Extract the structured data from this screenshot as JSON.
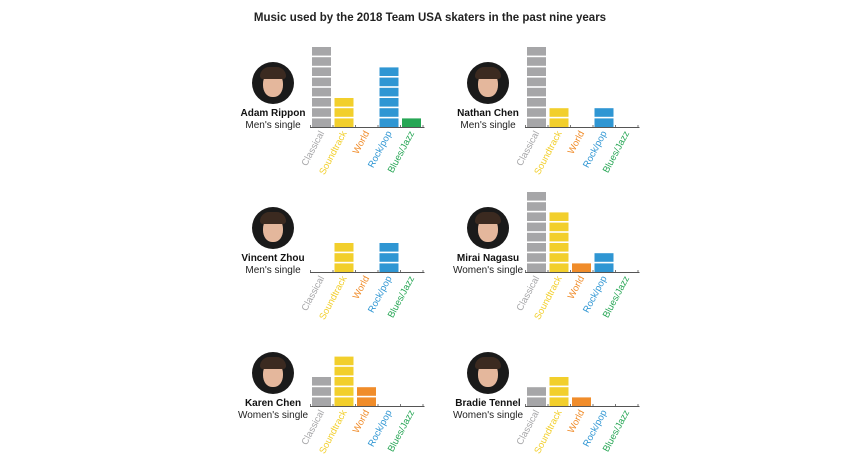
{
  "title": "Music used by the 2018 Team USA skaters in the past nine years",
  "categories": [
    "Classical",
    "Soundtrack",
    "World",
    "Rock/pop",
    "Blues/Jazz"
  ],
  "colors": {
    "Classical": "#a6a6a8",
    "Soundtrack": "#f2cf2c",
    "World": "#f08c2a",
    "Rock/pop": "#2f96d3",
    "Blues/Jazz": "#27a655"
  },
  "skaters": [
    {
      "name": "Adam Rippon",
      "event": "Men's single"
    },
    {
      "name": "Nathan Chen",
      "event": "Men's single"
    },
    {
      "name": "Vincent Zhou",
      "event": "Men's single"
    },
    {
      "name": "Mirai Nagasu",
      "event": "Women's single"
    },
    {
      "name": "Karen Chen",
      "event": "Women's single"
    },
    {
      "name": "Bradie Tennel",
      "event": "Women's single"
    }
  ],
  "chart_data": [
    {
      "type": "bar",
      "title": "Adam Rippon",
      "categories": [
        "Classical",
        "Soundtrack",
        "World",
        "Rock/pop",
        "Blues/Jazz"
      ],
      "values": [
        8,
        3,
        0,
        6,
        1
      ]
    },
    {
      "type": "bar",
      "title": "Nathan Chen",
      "categories": [
        "Classical",
        "Soundtrack",
        "World",
        "Rock/pop",
        "Blues/Jazz"
      ],
      "values": [
        8,
        2,
        0,
        2,
        0
      ]
    },
    {
      "type": "bar",
      "title": "Vincent Zhou",
      "categories": [
        "Classical",
        "Soundtrack",
        "World",
        "Rock/pop",
        "Blues/Jazz"
      ],
      "values": [
        0,
        3,
        0,
        3,
        0
      ]
    },
    {
      "type": "bar",
      "title": "Mirai Nagasu",
      "categories": [
        "Classical",
        "Soundtrack",
        "World",
        "Rock/pop",
        "Blues/Jazz"
      ],
      "values": [
        8,
        6,
        1,
        2,
        0
      ]
    },
    {
      "type": "bar",
      "title": "Karen Chen",
      "categories": [
        "Classical",
        "Soundtrack",
        "World",
        "Rock/pop",
        "Blues/Jazz"
      ],
      "values": [
        3,
        5,
        2,
        0,
        0
      ]
    },
    {
      "type": "bar",
      "title": "Bradie Tennel",
      "categories": [
        "Classical",
        "Soundtrack",
        "World",
        "Rock/pop",
        "Blues/Jazz"
      ],
      "values": [
        2,
        3,
        1,
        0,
        0
      ]
    }
  ]
}
